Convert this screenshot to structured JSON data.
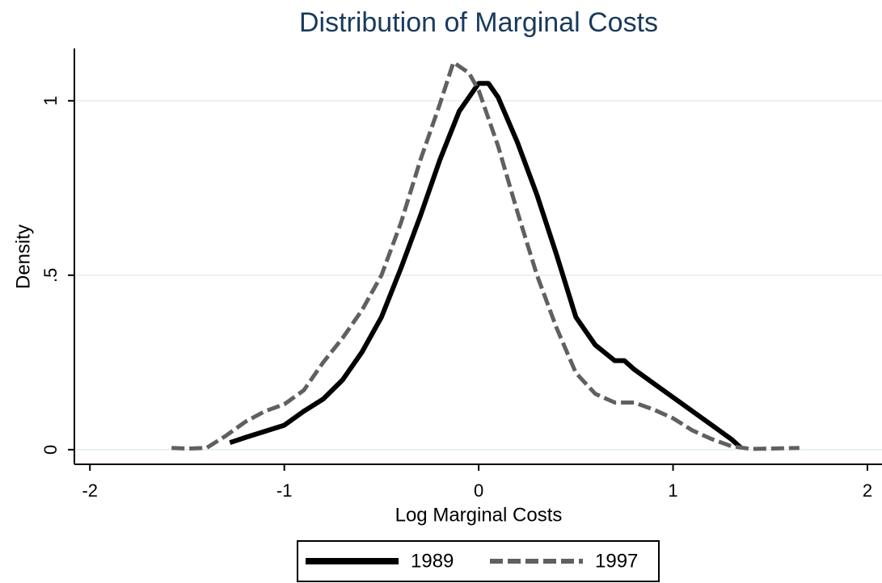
{
  "chart_data": {
    "type": "line",
    "title": "Distribution of Marginal Costs",
    "x_label": "Log Marginal Costs",
    "y_label": "Density",
    "series": [
      {
        "name": "1989",
        "color": "#000000",
        "dash": false,
        "x": [
          -1.28,
          -1.2,
          -1.0,
          -0.9,
          -0.8,
          -0.7,
          -0.6,
          -0.5,
          -0.4,
          -0.3,
          -0.2,
          -0.1,
          0,
          0.05,
          0.1,
          0.2,
          0.3,
          0.4,
          0.5,
          0.6,
          0.7,
          0.75,
          0.8,
          0.9,
          1.0,
          1.1,
          1.2,
          1.3,
          1.35
        ],
        "values": [
          0.02,
          0.035,
          0.07,
          0.11,
          0.145,
          0.2,
          0.28,
          0.38,
          0.52,
          0.67,
          0.83,
          0.97,
          1.05,
          1.05,
          1.01,
          0.88,
          0.73,
          0.56,
          0.38,
          0.3,
          0.255,
          0.255,
          0.23,
          0.19,
          0.15,
          0.11,
          0.07,
          0.03,
          0.005
        ]
      },
      {
        "name": "1997",
        "color": "#606060",
        "dash": true,
        "x": [
          -1.58,
          -1.5,
          -1.4,
          -1.3,
          -1.2,
          -1.1,
          -1.0,
          -0.9,
          -0.8,
          -0.7,
          -0.6,
          -0.5,
          -0.4,
          -0.3,
          -0.2,
          -0.13,
          -0.05,
          0,
          0.1,
          0.2,
          0.3,
          0.4,
          0.5,
          0.6,
          0.7,
          0.8,
          0.9,
          1.0,
          1.1,
          1.2,
          1.3,
          1.4,
          1.5,
          1.65
        ],
        "values": [
          0.005,
          0.003,
          0.005,
          0.04,
          0.08,
          0.11,
          0.13,
          0.17,
          0.25,
          0.32,
          0.4,
          0.5,
          0.65,
          0.83,
          0.99,
          1.11,
          1.08,
          1.03,
          0.87,
          0.68,
          0.5,
          0.35,
          0.22,
          0.16,
          0.135,
          0.135,
          0.115,
          0.09,
          0.055,
          0.03,
          0.01,
          0.002,
          0.003,
          0.005
        ]
      }
    ],
    "xlim": [
      -2.08,
      2.075
    ],
    "ylim": [
      -0.042,
      1.15
    ],
    "xticks": [
      -2,
      -1,
      0,
      1,
      2
    ],
    "yticks": [
      0,
      {
        "value": 0.5,
        "label": ".5"
      },
      1
    ],
    "grid": true
  }
}
